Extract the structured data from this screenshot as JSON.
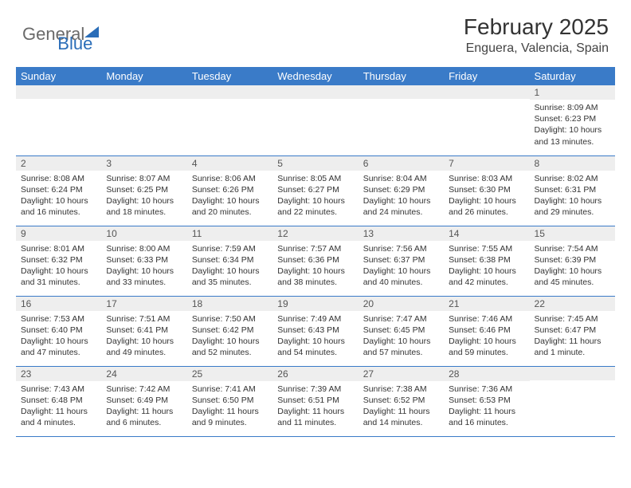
{
  "logo": {
    "part1": "General",
    "part2": "Blue"
  },
  "title": "February 2025",
  "location": "Enguera, Valencia, Spain",
  "colors": {
    "header_bg": "#3a7bc8",
    "header_text": "#ffffff",
    "daynum_bg": "#eeeeee",
    "border": "#3a7bc8",
    "logo_gray": "#6a6a6a",
    "logo_blue": "#2a6db8"
  },
  "weekdays": [
    "Sunday",
    "Monday",
    "Tuesday",
    "Wednesday",
    "Thursday",
    "Friday",
    "Saturday"
  ],
  "weeks": [
    [
      {
        "n": "",
        "lines": []
      },
      {
        "n": "",
        "lines": []
      },
      {
        "n": "",
        "lines": []
      },
      {
        "n": "",
        "lines": []
      },
      {
        "n": "",
        "lines": []
      },
      {
        "n": "",
        "lines": []
      },
      {
        "n": "1",
        "lines": [
          "Sunrise: 8:09 AM",
          "Sunset: 6:23 PM",
          "Daylight: 10 hours and 13 minutes."
        ]
      }
    ],
    [
      {
        "n": "2",
        "lines": [
          "Sunrise: 8:08 AM",
          "Sunset: 6:24 PM",
          "Daylight: 10 hours and 16 minutes."
        ]
      },
      {
        "n": "3",
        "lines": [
          "Sunrise: 8:07 AM",
          "Sunset: 6:25 PM",
          "Daylight: 10 hours and 18 minutes."
        ]
      },
      {
        "n": "4",
        "lines": [
          "Sunrise: 8:06 AM",
          "Sunset: 6:26 PM",
          "Daylight: 10 hours and 20 minutes."
        ]
      },
      {
        "n": "5",
        "lines": [
          "Sunrise: 8:05 AM",
          "Sunset: 6:27 PM",
          "Daylight: 10 hours and 22 minutes."
        ]
      },
      {
        "n": "6",
        "lines": [
          "Sunrise: 8:04 AM",
          "Sunset: 6:29 PM",
          "Daylight: 10 hours and 24 minutes."
        ]
      },
      {
        "n": "7",
        "lines": [
          "Sunrise: 8:03 AM",
          "Sunset: 6:30 PM",
          "Daylight: 10 hours and 26 minutes."
        ]
      },
      {
        "n": "8",
        "lines": [
          "Sunrise: 8:02 AM",
          "Sunset: 6:31 PM",
          "Daylight: 10 hours and 29 minutes."
        ]
      }
    ],
    [
      {
        "n": "9",
        "lines": [
          "Sunrise: 8:01 AM",
          "Sunset: 6:32 PM",
          "Daylight: 10 hours and 31 minutes."
        ]
      },
      {
        "n": "10",
        "lines": [
          "Sunrise: 8:00 AM",
          "Sunset: 6:33 PM",
          "Daylight: 10 hours and 33 minutes."
        ]
      },
      {
        "n": "11",
        "lines": [
          "Sunrise: 7:59 AM",
          "Sunset: 6:34 PM",
          "Daylight: 10 hours and 35 minutes."
        ]
      },
      {
        "n": "12",
        "lines": [
          "Sunrise: 7:57 AM",
          "Sunset: 6:36 PM",
          "Daylight: 10 hours and 38 minutes."
        ]
      },
      {
        "n": "13",
        "lines": [
          "Sunrise: 7:56 AM",
          "Sunset: 6:37 PM",
          "Daylight: 10 hours and 40 minutes."
        ]
      },
      {
        "n": "14",
        "lines": [
          "Sunrise: 7:55 AM",
          "Sunset: 6:38 PM",
          "Daylight: 10 hours and 42 minutes."
        ]
      },
      {
        "n": "15",
        "lines": [
          "Sunrise: 7:54 AM",
          "Sunset: 6:39 PM",
          "Daylight: 10 hours and 45 minutes."
        ]
      }
    ],
    [
      {
        "n": "16",
        "lines": [
          "Sunrise: 7:53 AM",
          "Sunset: 6:40 PM",
          "Daylight: 10 hours and 47 minutes."
        ]
      },
      {
        "n": "17",
        "lines": [
          "Sunrise: 7:51 AM",
          "Sunset: 6:41 PM",
          "Daylight: 10 hours and 49 minutes."
        ]
      },
      {
        "n": "18",
        "lines": [
          "Sunrise: 7:50 AM",
          "Sunset: 6:42 PM",
          "Daylight: 10 hours and 52 minutes."
        ]
      },
      {
        "n": "19",
        "lines": [
          "Sunrise: 7:49 AM",
          "Sunset: 6:43 PM",
          "Daylight: 10 hours and 54 minutes."
        ]
      },
      {
        "n": "20",
        "lines": [
          "Sunrise: 7:47 AM",
          "Sunset: 6:45 PM",
          "Daylight: 10 hours and 57 minutes."
        ]
      },
      {
        "n": "21",
        "lines": [
          "Sunrise: 7:46 AM",
          "Sunset: 6:46 PM",
          "Daylight: 10 hours and 59 minutes."
        ]
      },
      {
        "n": "22",
        "lines": [
          "Sunrise: 7:45 AM",
          "Sunset: 6:47 PM",
          "Daylight: 11 hours and 1 minute."
        ]
      }
    ],
    [
      {
        "n": "23",
        "lines": [
          "Sunrise: 7:43 AM",
          "Sunset: 6:48 PM",
          "Daylight: 11 hours and 4 minutes."
        ]
      },
      {
        "n": "24",
        "lines": [
          "Sunrise: 7:42 AM",
          "Sunset: 6:49 PM",
          "Daylight: 11 hours and 6 minutes."
        ]
      },
      {
        "n": "25",
        "lines": [
          "Sunrise: 7:41 AM",
          "Sunset: 6:50 PM",
          "Daylight: 11 hours and 9 minutes."
        ]
      },
      {
        "n": "26",
        "lines": [
          "Sunrise: 7:39 AM",
          "Sunset: 6:51 PM",
          "Daylight: 11 hours and 11 minutes."
        ]
      },
      {
        "n": "27",
        "lines": [
          "Sunrise: 7:38 AM",
          "Sunset: 6:52 PM",
          "Daylight: 11 hours and 14 minutes."
        ]
      },
      {
        "n": "28",
        "lines": [
          "Sunrise: 7:36 AM",
          "Sunset: 6:53 PM",
          "Daylight: 11 hours and 16 minutes."
        ]
      },
      {
        "n": "",
        "lines": []
      }
    ]
  ]
}
